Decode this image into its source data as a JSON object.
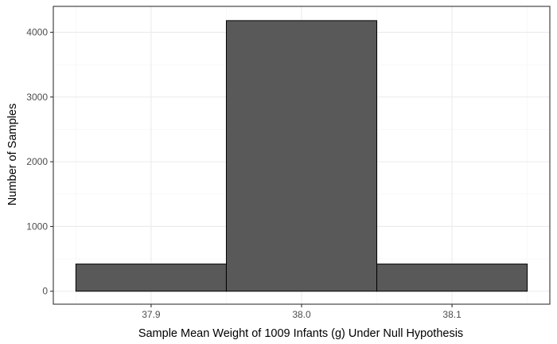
{
  "chart_data": {
    "type": "bar",
    "subtype": "histogram",
    "xlabel": "Sample Mean Weight of 1009 Infants (g) Under Null Hypothesis",
    "ylabel": "Number of Samples",
    "bins": [
      {
        "start": 37.85,
        "end": 37.95,
        "value": 420
      },
      {
        "start": 37.95,
        "end": 38.05,
        "value": 4180
      },
      {
        "start": 38.05,
        "end": 38.15,
        "value": 420
      }
    ],
    "xlim": [
      37.835,
      38.165
    ],
    "ylim": [
      -200,
      4400
    ],
    "x_ticks": [
      {
        "value": 37.9,
        "label": "37.9"
      },
      {
        "value": 38.0,
        "label": "38.0"
      },
      {
        "value": 38.1,
        "label": "38.1"
      }
    ],
    "y_ticks": [
      {
        "value": 0,
        "label": "0"
      },
      {
        "value": 1000,
        "label": "1000"
      },
      {
        "value": 2000,
        "label": "2000"
      },
      {
        "value": 3000,
        "label": "3000"
      },
      {
        "value": 4000,
        "label": "4000"
      }
    ],
    "grid": true,
    "colors": {
      "bar_fill": "#595959",
      "bar_stroke": "#000000",
      "grid_major": "#ebebeb",
      "grid_minor": "#f5f5f5",
      "panel_border": "#333333"
    }
  }
}
